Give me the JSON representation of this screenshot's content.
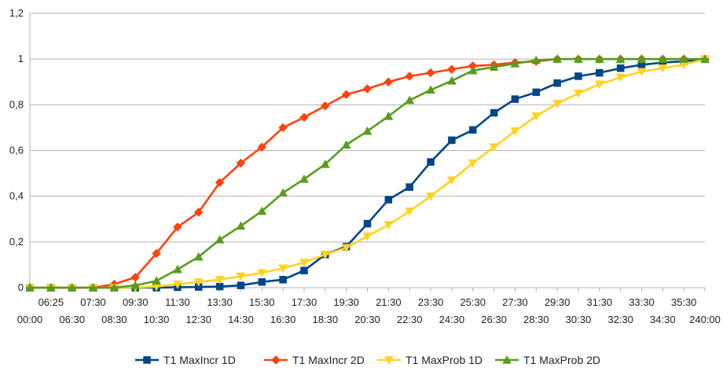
{
  "chart_data": {
    "type": "line",
    "title": "",
    "xlabel": "",
    "ylabel": "",
    "ylim": [
      0,
      1.2
    ],
    "yticks": [
      "0",
      "0,2",
      "0,4",
      "0,6",
      "0,8",
      "1",
      "1,2"
    ],
    "grid": "horizontal",
    "legend": "bottom",
    "categories": [
      "00:00",
      "06:25",
      "06:30",
      "07:30",
      "08:30",
      "09:30",
      "10:30",
      "11:30",
      "12:30",
      "13:30",
      "14:30",
      "15:30",
      "16:30",
      "17:30",
      "18:30",
      "19:30",
      "20:30",
      "21:30",
      "22:30",
      "23:30",
      "24:30",
      "25:30",
      "26:30",
      "27:30",
      "28:30",
      "29:30",
      "30:30",
      "31:30",
      "32:30",
      "33:30",
      "34:30",
      "35:30",
      "240:00"
    ],
    "series": [
      {
        "name": "T1 MaxIncr 1D",
        "color": "#004586",
        "marker": "square",
        "values": [
          0,
          0,
          0,
          0,
          0,
          0,
          0,
          0.002,
          0.003,
          0.005,
          0.01,
          0.025,
          0.035,
          0.075,
          0.145,
          0.18,
          0.28,
          0.385,
          0.44,
          0.55,
          0.645,
          0.69,
          0.765,
          0.825,
          0.855,
          0.895,
          0.925,
          0.94,
          0.96,
          0.975,
          0.985,
          0.99,
          1
        ]
      },
      {
        "name": "T1 MaxIncr 2D",
        "color": "#ff420e",
        "marker": "diamond",
        "values": [
          0,
          0,
          0,
          0,
          0.015,
          0.045,
          0.15,
          0.265,
          0.33,
          0.46,
          0.545,
          0.615,
          0.7,
          0.745,
          0.795,
          0.845,
          0.87,
          0.9,
          0.925,
          0.94,
          0.955,
          0.97,
          0.975,
          0.985,
          0.99,
          1,
          1,
          1,
          1,
          1,
          1,
          1,
          1
        ]
      },
      {
        "name": "T1 MaxProb 1D",
        "color": "#ffd320",
        "marker": "triangle-down",
        "values": [
          0,
          0,
          0,
          0,
          0,
          0,
          0.005,
          0.015,
          0.025,
          0.035,
          0.05,
          0.065,
          0.085,
          0.11,
          0.145,
          0.175,
          0.225,
          0.275,
          0.335,
          0.4,
          0.47,
          0.545,
          0.615,
          0.685,
          0.75,
          0.805,
          0.85,
          0.89,
          0.92,
          0.945,
          0.96,
          0.975,
          1
        ]
      },
      {
        "name": "T1 MaxProb 2D",
        "color": "#579d1c",
        "marker": "triangle-up",
        "values": [
          0,
          0,
          0,
          0,
          0,
          0.01,
          0.03,
          0.08,
          0.135,
          0.21,
          0.27,
          0.335,
          0.415,
          0.475,
          0.54,
          0.625,
          0.685,
          0.75,
          0.82,
          0.865,
          0.905,
          0.95,
          0.965,
          0.98,
          0.995,
          1,
          1,
          1,
          1,
          1,
          1,
          1,
          1
        ]
      }
    ]
  }
}
